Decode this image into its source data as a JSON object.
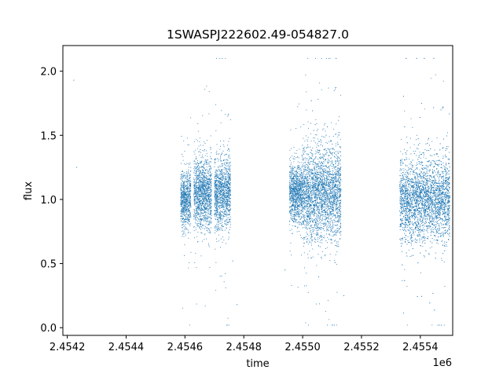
{
  "chart_data": {
    "type": "scatter",
    "title": "1SWASPJ222602.49-054827.0",
    "xlabel": "time",
    "ylabel": "flux",
    "x_offset_label": "1e6",
    "xlim": [
      2454185,
      2455510
    ],
    "ylim": [
      -0.06,
      2.2
    ],
    "x_ticks": [
      2454200,
      2454400,
      2454600,
      2454800,
      2455000,
      2455200,
      2455400
    ],
    "x_tick_labels": [
      "2.4542",
      "2.4544",
      "2.4546",
      "2.4548",
      "2.4550",
      "2.4552",
      "2.4554"
    ],
    "y_ticks": [
      0.0,
      0.5,
      1.0,
      1.5,
      2.0
    ],
    "y_tick_labels": [
      "0.0",
      "0.5",
      "1.0",
      "1.5",
      "2.0"
    ],
    "grid": false,
    "marker_color": "#1f77b4",
    "series": [
      {
        "observing_seasons": [
          {
            "x_start": 2454585,
            "x_end": 2454620,
            "y_center": 1.0,
            "y_spread": 0.25
          },
          {
            "x_start": 2454630,
            "x_end": 2454690,
            "y_center": 1.05,
            "y_spread": 0.3
          },
          {
            "x_start": 2454700,
            "x_end": 2454755,
            "y_center": 1.05,
            "y_spread": 0.3
          },
          {
            "x_start": 2454955,
            "x_end": 2455000,
            "y_center": 1.05,
            "y_spread": 0.25
          },
          {
            "x_start": 2455000,
            "x_end": 2455130,
            "y_center": 1.05,
            "y_spread": 0.4
          },
          {
            "x_start": 2455330,
            "x_end": 2455500,
            "y_center": 1.0,
            "y_spread": 0.35
          }
        ],
        "isolated_points": [
          {
            "x": 2454222,
            "y": 1.93
          },
          {
            "x": 2454232,
            "y": 1.25
          },
          {
            "x": 2454762,
            "y": 0.52
          },
          {
            "x": 2454777,
            "y": 0.18
          },
          {
            "x": 2454940,
            "y": 0.45
          },
          {
            "x": 2455140,
            "y": 0.25
          }
        ]
      }
    ]
  }
}
